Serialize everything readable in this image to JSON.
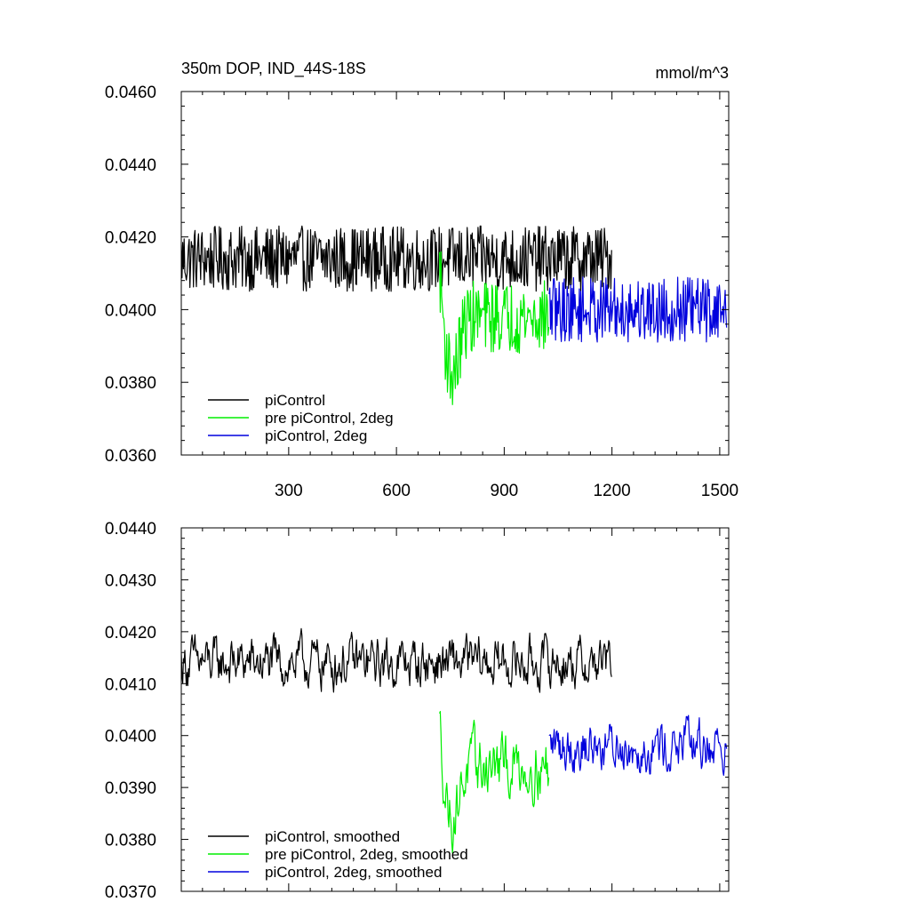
{
  "chart_data": [
    {
      "type": "line",
      "title": "350m DOP, IND_44S-18S",
      "units": "mmol/m^3",
      "xlim": [
        1,
        1525
      ],
      "ylim": [
        0.036,
        0.046
      ],
      "xticks": [
        300,
        600,
        900,
        1200,
        1500
      ],
      "xticklabels": [
        "300",
        "600",
        "900",
        "1200",
        "1500"
      ],
      "yticks": [
        0.036,
        0.038,
        0.04,
        0.042,
        0.044,
        0.046
      ],
      "yticklabels": [
        "0.0360",
        "0.0380",
        "0.0400",
        "0.0420",
        "0.0440",
        "0.0460"
      ],
      "legend_position": "bottom-left",
      "series": [
        {
          "name": "piControl",
          "color": "#000000",
          "x_range": [
            1,
            1200
          ],
          "mean": 0.0414,
          "amplitude": 0.0009,
          "shape": "flat"
        },
        {
          "name": "pre piControl, 2deg",
          "color": "#00ee00",
          "x_range": [
            720,
            1025
          ],
          "mean": 0.0398,
          "amplitude": 0.001,
          "shape": "dip"
        },
        {
          "name": "piControl, 2deg",
          "color": "#0000dd",
          "x_range": [
            1025,
            1520
          ],
          "mean": 0.04,
          "amplitude": 0.0009,
          "shape": "flat"
        }
      ]
    },
    {
      "type": "line",
      "xlim": [
        1,
        1525
      ],
      "ylim": [
        0.037,
        0.044
      ],
      "xticks": [
        300,
        600,
        900,
        1200,
        1500
      ],
      "xticklabels": [],
      "yticks": [
        0.037,
        0.038,
        0.039,
        0.04,
        0.041,
        0.042,
        0.043,
        0.044
      ],
      "yticklabels": [
        "0.0370",
        "0.0380",
        "0.0390",
        "0.0400",
        "0.0410",
        "0.0420",
        "0.0430",
        "0.0440"
      ],
      "legend_position": "bottom-left",
      "series": [
        {
          "name": "piControl, smoothed",
          "color": "#000000",
          "x_range": [
            1,
            1200
          ],
          "mean": 0.0414,
          "amplitude": 0.0005,
          "shape": "flat"
        },
        {
          "name": "pre piControl, 2deg, smoothed",
          "color": "#00ee00",
          "x_range": [
            720,
            1025
          ],
          "mean": 0.0394,
          "amplitude": 0.0006,
          "shape": "dip"
        },
        {
          "name": "piControl, 2deg, smoothed",
          "color": "#0000dd",
          "x_range": [
            1025,
            1520
          ],
          "mean": 0.0398,
          "amplitude": 0.0005,
          "shape": "flat"
        }
      ]
    }
  ]
}
